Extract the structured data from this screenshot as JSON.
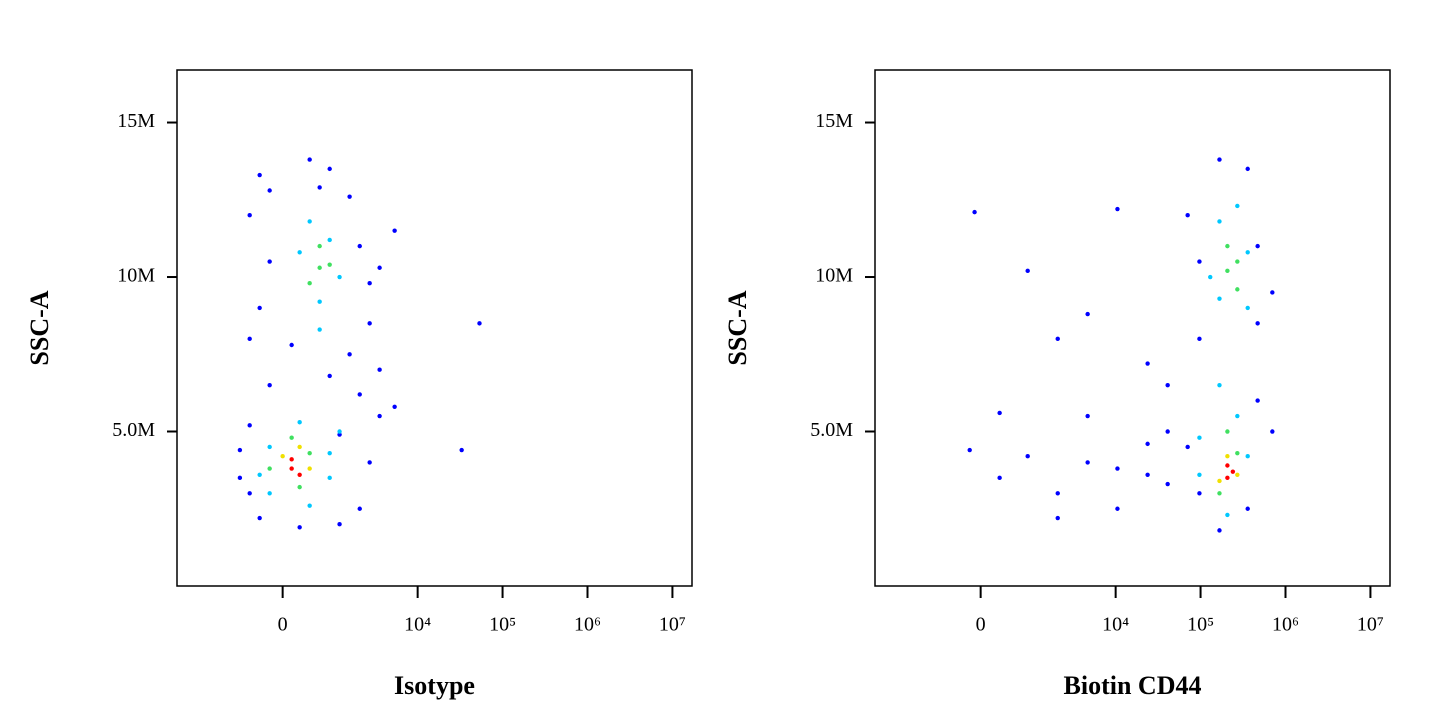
{
  "chart_data": [
    {
      "type": "scatter",
      "xlabel": "Isotype",
      "ylabel": "SSC-A",
      "xscale": "asinh",
      "xlim": [
        -4500,
        17000000
      ],
      "ylim": [
        0,
        16700000
      ],
      "xticks": [
        0,
        {
          "value": 10000,
          "label": "10⁴"
        },
        {
          "value": 100000,
          "label": "10⁵"
        },
        {
          "value": 1000000,
          "label": "10⁶"
        },
        {
          "value": 10000000,
          "label": "10⁷"
        }
      ],
      "yticks": [
        {
          "value": 5000000,
          "label": "5.0M"
        },
        {
          "value": 10000000,
          "label": "10M"
        },
        {
          "value": 15000000,
          "label": "15M"
        }
      ],
      "series": [
        {
          "color": "#0000ff",
          "x": [
            -740,
            -524,
            -342,
            -524,
            -185,
            2700,
            3550,
            2050,
            1540,
            2700,
            -342,
            -524,
            -185,
            412,
            850,
            1540,
            2050,
            2700,
            3550,
            5350,
            5350,
            33000,
            53500,
            -342,
            246,
            1150,
            -740,
            127,
            850,
            -185,
            3550,
            1150,
            2050,
            -524,
            608
          ],
          "values": [
            4400000,
            3000000,
            2200000,
            5200000,
            6500000,
            4000000,
            5500000,
            2500000,
            7500000,
            8500000,
            9000000,
            12000000,
            12800000,
            13800000,
            13500000,
            12600000,
            11000000,
            9800000,
            7000000,
            11500000,
            5800000,
            4400000,
            8500000,
            13300000,
            1900000,
            2000000,
            3500000,
            7800000,
            6800000,
            10500000,
            10300000,
            4900000,
            6200000,
            8000000,
            12900000
          ]
        },
        {
          "color": "#00c8ff",
          "x": [
            -185,
            412,
            850,
            -342,
            608,
            850,
            246,
            1150,
            412,
            608,
            1150,
            -185,
            850,
            246
          ],
          "values": [
            4500000,
            2600000,
            3500000,
            3600000,
            9200000,
            11200000,
            10800000,
            10000000,
            11800000,
            8300000,
            5000000,
            3000000,
            4300000,
            5300000
          ]
        },
        {
          "color": "#40e060",
          "x": [
            127,
            412,
            -185,
            608,
            412,
            850,
            608,
            246
          ],
          "values": [
            4800000,
            4300000,
            3800000,
            10300000,
            9800000,
            10400000,
            11000000,
            3200000
          ]
        },
        {
          "color": "#f0e000",
          "x": [
            246,
            0,
            412
          ],
          "values": [
            4500000,
            4200000,
            3800000
          ]
        },
        {
          "color": "#ff0000",
          "x": [
            127,
            246,
            127
          ],
          "values": [
            3800000,
            3600000,
            4100000
          ]
        }
      ]
    },
    {
      "type": "scatter",
      "xlabel": "Biotin CD44",
      "ylabel": "SSC-A",
      "xscale": "asinh",
      "xlim": [
        -4500,
        17000000
      ],
      "ylim": [
        0,
        16700000
      ],
      "xticks": [
        0,
        {
          "value": 10000,
          "label": "10⁴"
        },
        {
          "value": 100000,
          "label": "10⁵"
        },
        {
          "value": 1000000,
          "label": "10⁶"
        },
        {
          "value": 10000000,
          "label": "10⁷"
        }
      ],
      "yticks": [
        {
          "value": 5000000,
          "label": "5.0M"
        },
        {
          "value": 10000000,
          "label": "10M"
        },
        {
          "value": 15000000,
          "label": "15M"
        }
      ],
      "series": [
        {
          "color": "#0000ff",
          "x": [
            97000,
            70500,
            41000,
            167000,
            359000,
            470000,
            700000,
            97000,
            70500,
            167000,
            359000,
            470000,
            97000,
            470000,
            277,
            850,
            2050,
            4670,
            10500,
            23800,
            -155,
            -85,
            850,
            4670,
            10500,
            23800,
            2050,
            10500,
            41000,
            277,
            4670,
            23800,
            2050,
            41000,
            700000
          ],
          "values": [
            3000000,
            4500000,
            5000000,
            1800000,
            2500000,
            6000000,
            5000000,
            8000000,
            12000000,
            13800000,
            13500000,
            11000000,
            10500000,
            8500000,
            3500000,
            4200000,
            3000000,
            5500000,
            3800000,
            4600000,
            4400000,
            12100000,
            10200000,
            8800000,
            12200000,
            7200000,
            2200000,
            2500000,
            3300000,
            5600000,
            4000000,
            3600000,
            8000000,
            6500000,
            9500000
          ]
        },
        {
          "color": "#00c8ff",
          "x": [
            167000,
            271000,
            359000,
            97000,
            167000,
            271000,
            359000,
            167000,
            97000,
            207000,
            359000,
            130000
          ],
          "values": [
            6500000,
            5500000,
            4200000,
            4800000,
            11800000,
            12300000,
            9000000,
            9300000,
            3600000,
            2300000,
            10800000,
            10000000
          ]
        },
        {
          "color": "#40e060",
          "x": [
            207000,
            271000,
            207000,
            271000,
            167000,
            271000,
            207000
          ],
          "values": [
            5000000,
            4300000,
            10200000,
            10500000,
            3000000,
            9600000,
            11000000
          ]
        },
        {
          "color": "#f0e000",
          "x": [
            207000,
            271000,
            167000
          ],
          "values": [
            4200000,
            3600000,
            3400000
          ]
        },
        {
          "color": "#ff0000",
          "x": [
            207000,
            207000,
            240000
          ],
          "values": [
            3500000,
            3900000,
            3700000
          ]
        }
      ]
    }
  ]
}
